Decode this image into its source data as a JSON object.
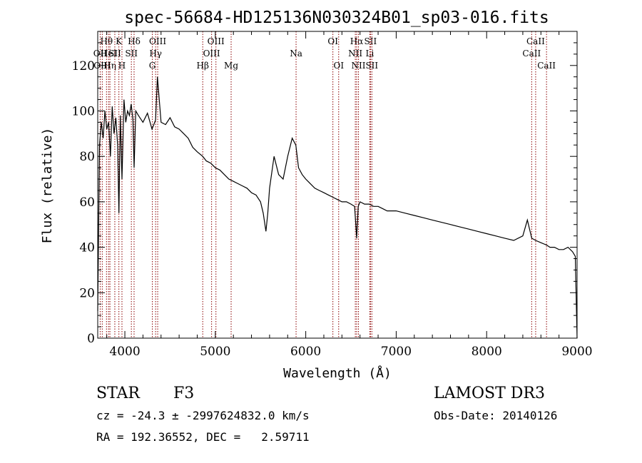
{
  "chart_data": {
    "type": "line",
    "title": "spec-56684-HD125136N030324B01_sp03-016.fits",
    "xlabel": "Wavelength (Å)",
    "ylabel": "Flux (relative)",
    "xlim": [
      3700,
      9000
    ],
    "ylim": [
      0,
      135
    ],
    "xticks": [
      4000,
      5000,
      6000,
      7000,
      8000,
      9000
    ],
    "yticks": [
      0,
      20,
      40,
      60,
      80,
      100,
      120
    ],
    "xtick_labels": [
      "4000",
      "5000",
      "6000",
      "7000",
      "8000",
      "9000"
    ],
    "ytick_labels": [
      "0",
      "20",
      "40",
      "60",
      "80",
      "100",
      "120"
    ],
    "series": [
      {
        "name": "spectrum",
        "x": [
          3700,
          3720,
          3740,
          3760,
          3780,
          3800,
          3820,
          3840,
          3860,
          3880,
          3900,
          3920,
          3934,
          3950,
          3968,
          3990,
          4010,
          4030,
          4050,
          4070,
          4090,
          4102,
          4120,
          4150,
          4200,
          4250,
          4300,
          4340,
          4360,
          4400,
          4450,
          4500,
          4550,
          4600,
          4650,
          4700,
          4750,
          4800,
          4861,
          4900,
          4950,
          5000,
          5050,
          5100,
          5150,
          5200,
          5250,
          5300,
          5350,
          5400,
          5450,
          5500,
          5530,
          5560,
          5580,
          5600,
          5650,
          5700,
          5750,
          5800,
          5850,
          5890,
          5920,
          5960,
          6000,
          6050,
          6100,
          6150,
          6200,
          6250,
          6300,
          6350,
          6400,
          6450,
          6500,
          6540,
          6563,
          6580,
          6600,
          6650,
          6700,
          6750,
          6800,
          6850,
          6900,
          6950,
          7000,
          7100,
          7200,
          7300,
          7400,
          7500,
          7600,
          7700,
          7800,
          7900,
          8000,
          8100,
          8200,
          8300,
          8400,
          8450,
          8498,
          8542,
          8600,
          8662,
          8700,
          8750,
          8800,
          8850,
          8900,
          8950,
          8980,
          9000
        ],
        "y": [
          12,
          85,
          95,
          88,
          100,
          92,
          95,
          80,
          102,
          90,
          97,
          85,
          55,
          98,
          70,
          105,
          95,
          100,
          98,
          103,
          96,
          75,
          100,
          98,
          95,
          99,
          92,
          96,
          115,
          95,
          94,
          97,
          93,
          92,
          90,
          88,
          84,
          82,
          80,
          78,
          77,
          75,
          74,
          72,
          70,
          69,
          68,
          67,
          66,
          64,
          63,
          60,
          55,
          47,
          55,
          66,
          80,
          72,
          70,
          80,
          88,
          85,
          75,
          72,
          70,
          68,
          66,
          65,
          64,
          63,
          62,
          61,
          60,
          60,
          59,
          58,
          44,
          58,
          60,
          59,
          59,
          58,
          58,
          57,
          56,
          56,
          56,
          55,
          54,
          53,
          52,
          51,
          50,
          49,
          48,
          47,
          46,
          45,
          44,
          43,
          45,
          52,
          44,
          43,
          42,
          41,
          40,
          40,
          39,
          39,
          40,
          38,
          36,
          0
        ]
      }
    ],
    "line_markers": [
      {
        "label": "Hθ",
        "x": 3797,
        "row": 1
      },
      {
        "label": "OII",
        "x": 3727,
        "row": 2
      },
      {
        "label": "OIII",
        "x": 3750,
        "row": 3
      },
      {
        "label": "HeI",
        "x": 3820,
        "row": 2
      },
      {
        "label": "Hη",
        "x": 3835,
        "row": 3
      },
      {
        "label": "K",
        "x": 3934,
        "row": 1
      },
      {
        "label": "SII",
        "x": 3889,
        "row": 2
      },
      {
        "label": "H",
        "x": 3968,
        "row": 3
      },
      {
        "label": "Hδ",
        "x": 4102,
        "row": 1
      },
      {
        "label": "SII",
        "x": 4072,
        "row": 2
      },
      {
        "label": "OIII",
        "x": 4363,
        "row": 1
      },
      {
        "label": "Hγ",
        "x": 4340,
        "row": 2
      },
      {
        "label": "G",
        "x": 4304,
        "row": 3
      },
      {
        "label": "Hβ",
        "x": 4861,
        "row": 3
      },
      {
        "label": "OIII",
        "x": 5007,
        "row": 1
      },
      {
        "label": "OIII",
        "x": 4959,
        "row": 2
      },
      {
        "label": "Mg",
        "x": 5175,
        "row": 3
      },
      {
        "label": "Na",
        "x": 5893,
        "row": 2
      },
      {
        "label": "OI",
        "x": 6300,
        "row": 1
      },
      {
        "label": "OI",
        "x": 6364,
        "row": 3
      },
      {
        "label": "Hα",
        "x": 6563,
        "row": 1
      },
      {
        "label": "NII",
        "x": 6548,
        "row": 2
      },
      {
        "label": "NII",
        "x": 6583,
        "row": 3
      },
      {
        "label": "SII",
        "x": 6716,
        "row": 1
      },
      {
        "label": "Li",
        "x": 6708,
        "row": 2
      },
      {
        "label": "SII",
        "x": 6731,
        "row": 3
      },
      {
        "label": "CaII",
        "x": 8542,
        "row": 1
      },
      {
        "label": "CaII",
        "x": 8498,
        "row": 2
      },
      {
        "label": "CaII",
        "x": 8662,
        "row": 3
      }
    ],
    "grid": false,
    "colors": {
      "spectrum": "#000000",
      "marker": "#8b0000",
      "axis": "#000000"
    }
  },
  "info": {
    "object_class": "STAR",
    "subclass": "F3",
    "survey": "LAMOST DR3",
    "redshift_line": "cz = -24.3 ± -2997624832.0 km/s",
    "obs_date": "Obs-Date: 20140126",
    "coords": "RA = 192.36552, DEC =   2.59711"
  }
}
